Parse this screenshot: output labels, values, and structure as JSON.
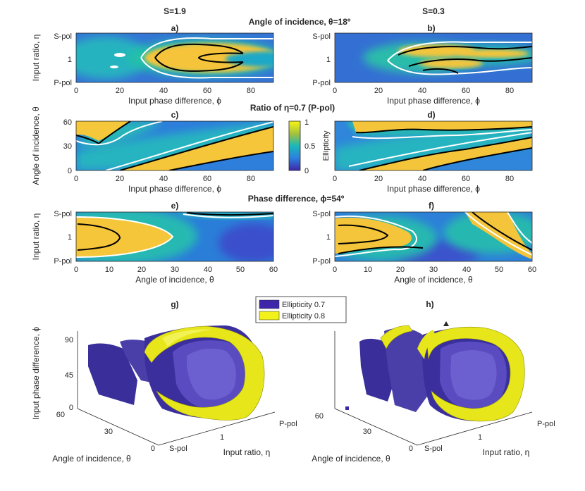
{
  "colors": {
    "low": "#3e26a8",
    "mid": "#2eb7a4",
    "high": "#f9d23c",
    "c07": "#3e26a8",
    "c08": "#f2f21a"
  },
  "headers": {
    "s_left": "S=1.9",
    "s_right": "S=0.3",
    "row1_title": "Angle of incidence, θ=18º",
    "row2_title": "Ratio of η=0.7 (P-pol)",
    "row3_title": "Phase difference, ϕ=54º"
  },
  "chart_data": [
    {
      "panel": "a)",
      "type": "heatmap",
      "xlabel": "Input phase difference, ϕ",
      "ylabel": "Input ratio, η",
      "x_ticks": [
        "0",
        "20",
        "40",
        "60",
        "80"
      ],
      "y_ticks": [
        "S-pol",
        "1",
        "P-pol"
      ],
      "xlim": [
        0,
        90
      ]
    },
    {
      "panel": "b)",
      "type": "heatmap",
      "xlabel": "Input phase difference, ϕ",
      "ylabel": "",
      "x_ticks": [
        "0",
        "20",
        "40",
        "60",
        "80"
      ],
      "y_ticks": [
        "S-pol",
        "1",
        "P-pol"
      ],
      "xlim": [
        0,
        90
      ]
    },
    {
      "panel": "c)",
      "type": "heatmap",
      "xlabel": "Input phase difference, ϕ",
      "ylabel": "Angle of incidence, θ",
      "x_ticks": [
        "0",
        "20",
        "40",
        "60",
        "80"
      ],
      "y_ticks": [
        "60",
        "30",
        "0"
      ],
      "xlim": [
        0,
        90
      ],
      "ylim": [
        0,
        60
      ]
    },
    {
      "panel": "d)",
      "type": "heatmap",
      "xlabel": "Input phase difference, ϕ",
      "ylabel": "",
      "x_ticks": [
        "0",
        "20",
        "40",
        "60",
        "80"
      ],
      "y_ticks": [
        "60",
        "30",
        "0"
      ],
      "xlim": [
        0,
        90
      ],
      "ylim": [
        0,
        60
      ]
    },
    {
      "panel": "e)",
      "type": "heatmap",
      "xlabel": "Angle of incidence, θ",
      "ylabel": "Input ratio, η",
      "x_ticks": [
        "0",
        "10",
        "20",
        "30",
        "40",
        "50",
        "60"
      ],
      "y_ticks": [
        "S-pol",
        "1",
        "P-pol"
      ],
      "xlim": [
        0,
        60
      ]
    },
    {
      "panel": "f)",
      "type": "heatmap",
      "xlabel": "Angle of incidence, θ",
      "ylabel": "",
      "x_ticks": [
        "0",
        "10",
        "20",
        "30",
        "40",
        "50",
        "60"
      ],
      "y_ticks": [
        "S-pol",
        "1",
        "P-pol"
      ],
      "xlim": [
        0,
        60
      ]
    },
    {
      "panel": "g)",
      "type": "surface3d",
      "zlabel": "Input phase difference, ϕ",
      "ylabel": "Angle of incidence, θ",
      "xlabel": "Input ratio, η",
      "z_ticks": [
        "90",
        "45",
        "0"
      ],
      "y_ticks": [
        "60",
        "30",
        "0"
      ],
      "x_ticks": [
        "S-pol",
        "1",
        "P-pol"
      ]
    },
    {
      "panel": "h)",
      "type": "surface3d",
      "zlabel": "",
      "ylabel": "Angle of incidence, θ",
      "xlabel": "Input ratio, η",
      "y_ticks": [
        "60",
        "30",
        "0"
      ],
      "x_ticks": [
        "S-pol",
        "1",
        "P-pol"
      ]
    }
  ],
  "colorbar": {
    "label": "Ellipticity",
    "ticks": [
      "1",
      "0.5",
      "0"
    ],
    "range": [
      0,
      1
    ]
  },
  "legend": {
    "items": [
      {
        "label": "Ellipticity 0.7"
      },
      {
        "label": "Ellipticity 0.8"
      }
    ]
  }
}
